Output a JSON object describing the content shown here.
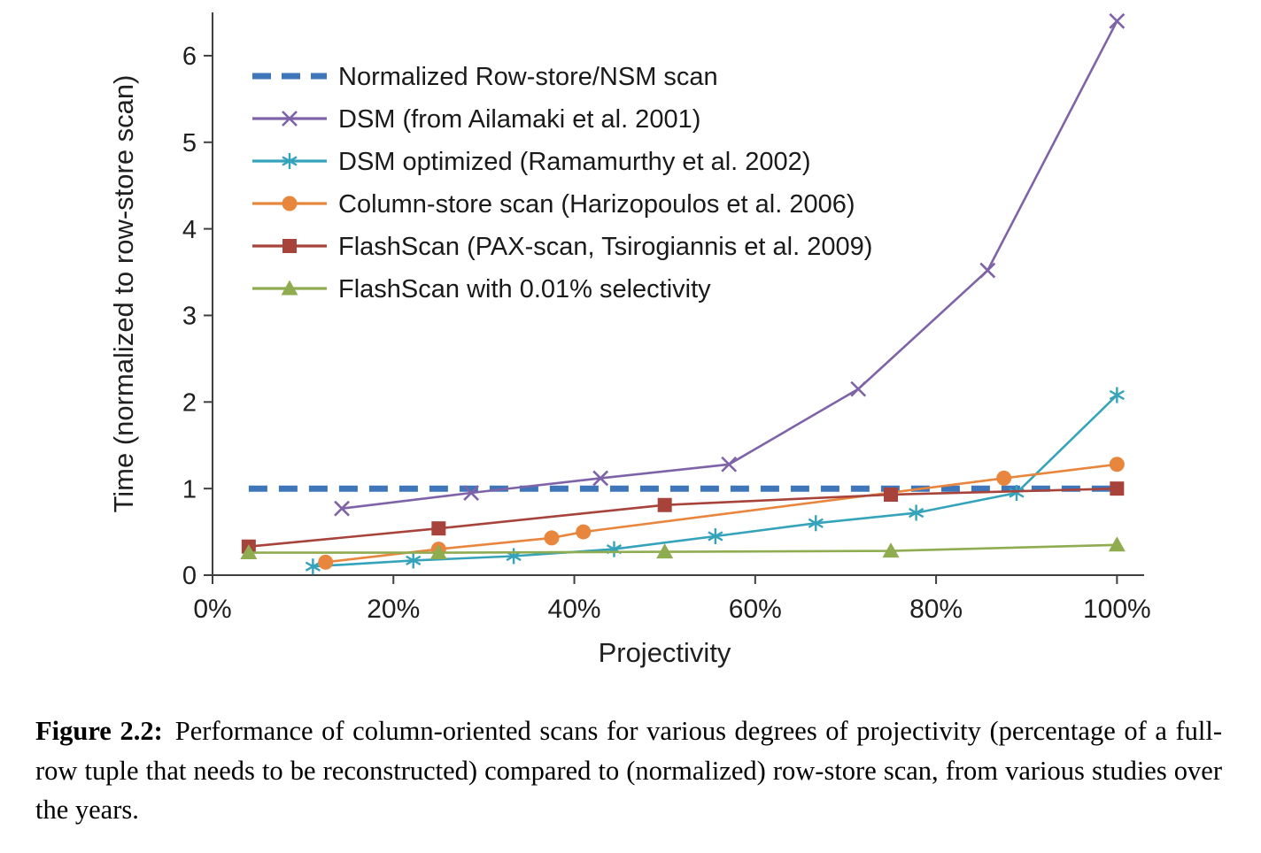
{
  "figure": {
    "label": "Figure 2.2:",
    "caption": "Performance of column-oriented scans for various degrees of projectivity (percentage of a full-row tuple that needs to be reconstructed) compared to (normalized) row-store scan, from various studies over the years."
  },
  "chart_data": {
    "type": "line",
    "title": "",
    "xlabel": "Projectivity",
    "ylabel": "Time (normalized to row-store scan)",
    "xlim": [
      0,
      103
    ],
    "ylim": [
      0,
      6.5
    ],
    "x_ticks": [
      0,
      20,
      40,
      60,
      80,
      100
    ],
    "x_tick_labels": [
      "0%",
      "20%",
      "40%",
      "60%",
      "80%",
      "100%"
    ],
    "y_ticks": [
      0,
      1,
      2,
      3,
      4,
      5,
      6
    ],
    "grid": false,
    "legend_position": "top-left",
    "axis_color": "#3f3f3f",
    "label_color": "#1f1f1f",
    "series": [
      {
        "name": "Normalized Row-store/NSM scan",
        "color": "#3F76B9",
        "marker": "none",
        "dash": "dashed",
        "line_width": 7,
        "x": [
          4,
          100
        ],
        "y": [
          1,
          1
        ]
      },
      {
        "name": "DSM (from Ailamaki et al. 2001)",
        "color": "#7E63A8",
        "marker": "x",
        "dash": "solid",
        "line_width": 2.6,
        "x": [
          14.3,
          28.6,
          42.9,
          57.1,
          71.4,
          85.7,
          100
        ],
        "y": [
          0.77,
          0.95,
          1.12,
          1.28,
          2.15,
          3.52,
          6.4
        ]
      },
      {
        "name": "DSM optimized (Ramamurthy et al. 2002)",
        "color": "#35A3BA",
        "marker": "asterisk",
        "dash": "solid",
        "line_width": 2.6,
        "x": [
          11.1,
          22.2,
          33.3,
          44.4,
          55.6,
          66.7,
          77.8,
          88.9,
          100
        ],
        "y": [
          0.1,
          0.17,
          0.22,
          0.3,
          0.45,
          0.6,
          0.72,
          0.95,
          2.08
        ]
      },
      {
        "name": "Column-store scan (Harizopoulos et al. 2006)",
        "color": "#E8863D",
        "marker": "circle",
        "dash": "solid",
        "line_width": 2.6,
        "x": [
          12.5,
          25,
          37.5,
          41,
          87.5,
          100
        ],
        "y": [
          0.15,
          0.3,
          0.43,
          0.5,
          1.12,
          1.28
        ]
      },
      {
        "name": "FlashScan (PAX-scan, Tsirogiannis et al. 2009)",
        "color": "#A8433C",
        "marker": "square",
        "dash": "solid",
        "line_width": 2.6,
        "x": [
          4,
          25,
          50,
          75,
          100
        ],
        "y": [
          0.33,
          0.54,
          0.81,
          0.93,
          1.0
        ]
      },
      {
        "name": "FlashScan with 0.01% selectivity",
        "color": "#8FAC51",
        "marker": "triangle",
        "dash": "solid",
        "line_width": 2.6,
        "x": [
          4,
          25,
          50,
          75,
          100
        ],
        "y": [
          0.26,
          0.26,
          0.27,
          0.28,
          0.35
        ]
      }
    ]
  }
}
